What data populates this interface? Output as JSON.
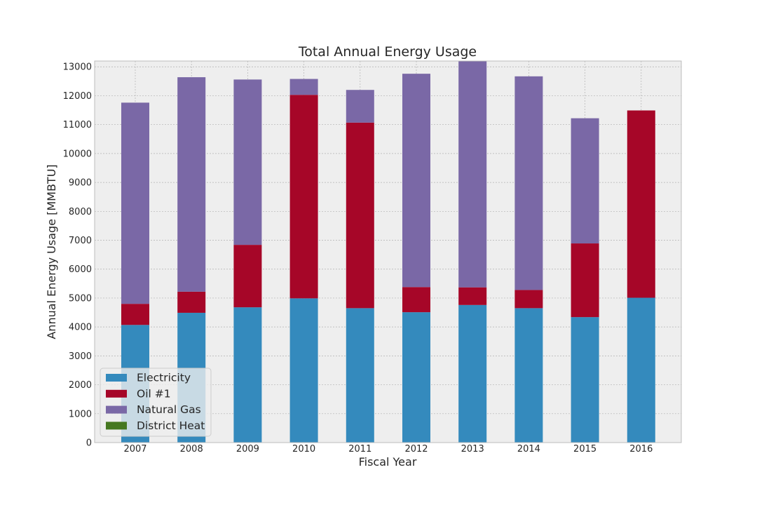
{
  "chart_data": {
    "type": "bar",
    "stacked": true,
    "title": "Total Annual Energy Usage",
    "xlabel": "Fiscal Year",
    "ylabel": "Annual Energy Usage [MMBTU]",
    "categories": [
      "2007",
      "2008",
      "2009",
      "2010",
      "2011",
      "2012",
      "2013",
      "2014",
      "2015",
      "2016"
    ],
    "ylim": [
      0,
      13200
    ],
    "yticks": [
      0,
      1000,
      2000,
      3000,
      4000,
      5000,
      6000,
      7000,
      8000,
      9000,
      10000,
      11000,
      12000,
      13000
    ],
    "grid": true,
    "legend_position": "lower-left",
    "series": [
      {
        "name": "Electricity",
        "color": "#348abd",
        "values": [
          4070,
          4490,
          4680,
          4990,
          4650,
          4510,
          4760,
          4650,
          4340,
          5010
        ]
      },
      {
        "name": "Oil #1",
        "color": "#a60628",
        "values": [
          730,
          730,
          2160,
          7040,
          6420,
          870,
          610,
          630,
          2550,
          6480
        ]
      },
      {
        "name": "Natural Gas",
        "color": "#7a68a6",
        "values": [
          6960,
          7420,
          5720,
          550,
          1130,
          7380,
          7820,
          7390,
          4330,
          0
        ]
      },
      {
        "name": "District Heat",
        "color": "#467821",
        "values": [
          0,
          0,
          0,
          0,
          0,
          0,
          0,
          0,
          0,
          0
        ]
      }
    ]
  }
}
